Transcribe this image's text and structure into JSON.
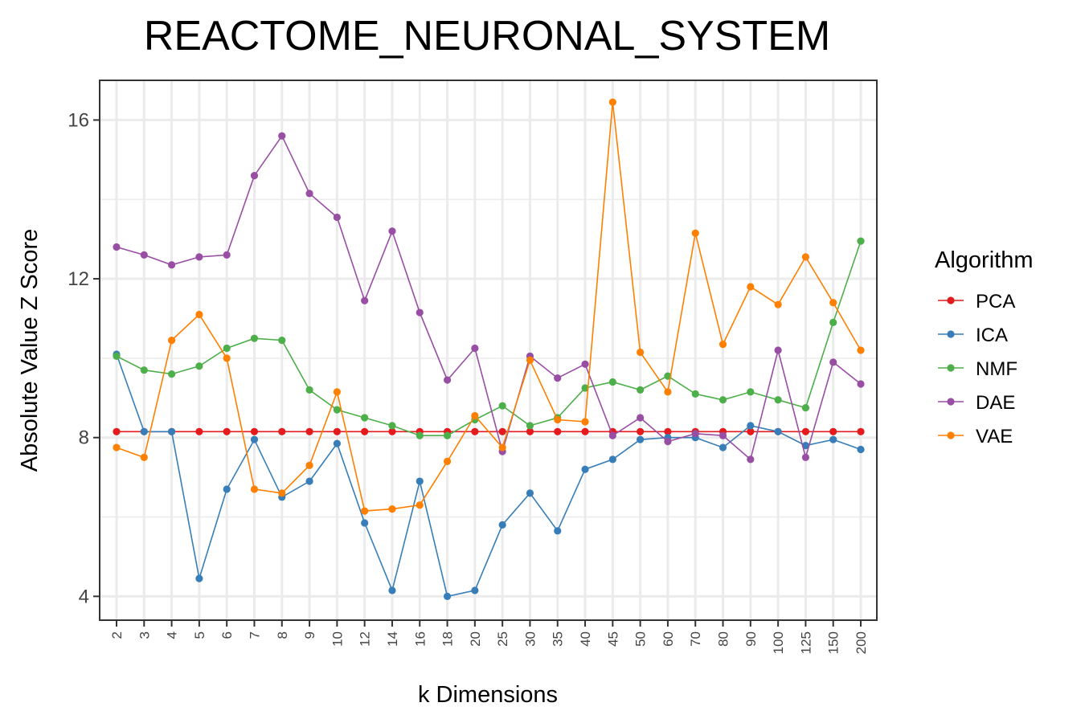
{
  "chart_data": {
    "type": "line",
    "title": "REACTOME_NEURONAL_SYSTEM",
    "xlabel": "k Dimensions",
    "ylabel": "Absolute Value Z Score",
    "categories": [
      "2",
      "3",
      "4",
      "5",
      "6",
      "7",
      "8",
      "9",
      "10",
      "12",
      "14",
      "16",
      "18",
      "20",
      "25",
      "30",
      "35",
      "40",
      "45",
      "50",
      "60",
      "70",
      "80",
      "90",
      "100",
      "125",
      "150",
      "200"
    ],
    "ylim": [
      3.4,
      17.0
    ],
    "yticks": [
      4,
      8,
      12,
      16
    ],
    "grid": true,
    "legend_title": "Algorithm",
    "legend_position": "right",
    "series": [
      {
        "name": "PCA",
        "color": "#e41a1c",
        "values": [
          8.15,
          8.15,
          8.15,
          8.15,
          8.15,
          8.15,
          8.15,
          8.15,
          8.15,
          8.15,
          8.15,
          8.15,
          8.15,
          8.15,
          8.15,
          8.15,
          8.15,
          8.15,
          8.15,
          8.15,
          8.15,
          8.15,
          8.15,
          8.15,
          8.15,
          8.15,
          8.15,
          8.15
        ]
      },
      {
        "name": "ICA",
        "color": "#377eb8",
        "values": [
          10.1,
          8.15,
          8.15,
          4.45,
          6.7,
          7.95,
          6.5,
          6.9,
          7.85,
          5.85,
          4.15,
          6.9,
          4.0,
          4.15,
          5.8,
          6.6,
          5.65,
          7.2,
          7.45,
          7.95,
          8.0,
          8.0,
          7.75,
          8.3,
          8.15,
          7.8,
          7.95,
          7.7
        ]
      },
      {
        "name": "NMF",
        "color": "#4daf4a",
        "values": [
          10.05,
          9.7,
          9.6,
          9.8,
          10.25,
          10.5,
          10.45,
          9.2,
          8.7,
          8.5,
          8.3,
          8.05,
          8.05,
          8.45,
          8.8,
          8.3,
          8.5,
          9.25,
          9.4,
          9.2,
          9.55,
          9.1,
          8.95,
          9.15,
          8.95,
          8.75,
          10.9,
          12.95
        ]
      },
      {
        "name": "DAE",
        "color": "#984ea3",
        "values": [
          12.8,
          12.6,
          12.35,
          12.55,
          12.6,
          14.6,
          15.6,
          14.15,
          13.55,
          11.45,
          13.2,
          11.15,
          9.45,
          10.25,
          7.65,
          10.05,
          9.5,
          9.85,
          8.05,
          8.5,
          7.9,
          8.1,
          8.05,
          7.45,
          10.2,
          7.5,
          9.9,
          9.35
        ]
      },
      {
        "name": "VAE",
        "color": "#ff7f00",
        "values": [
          7.75,
          7.5,
          10.45,
          11.1,
          10.0,
          6.7,
          6.6,
          7.3,
          9.15,
          6.15,
          6.2,
          6.3,
          7.4,
          8.55,
          7.75,
          9.95,
          8.45,
          8.4,
          16.45,
          10.15,
          9.15,
          13.15,
          10.35,
          11.8,
          11.35,
          12.55,
          11.4,
          10.2
        ]
      }
    ]
  }
}
